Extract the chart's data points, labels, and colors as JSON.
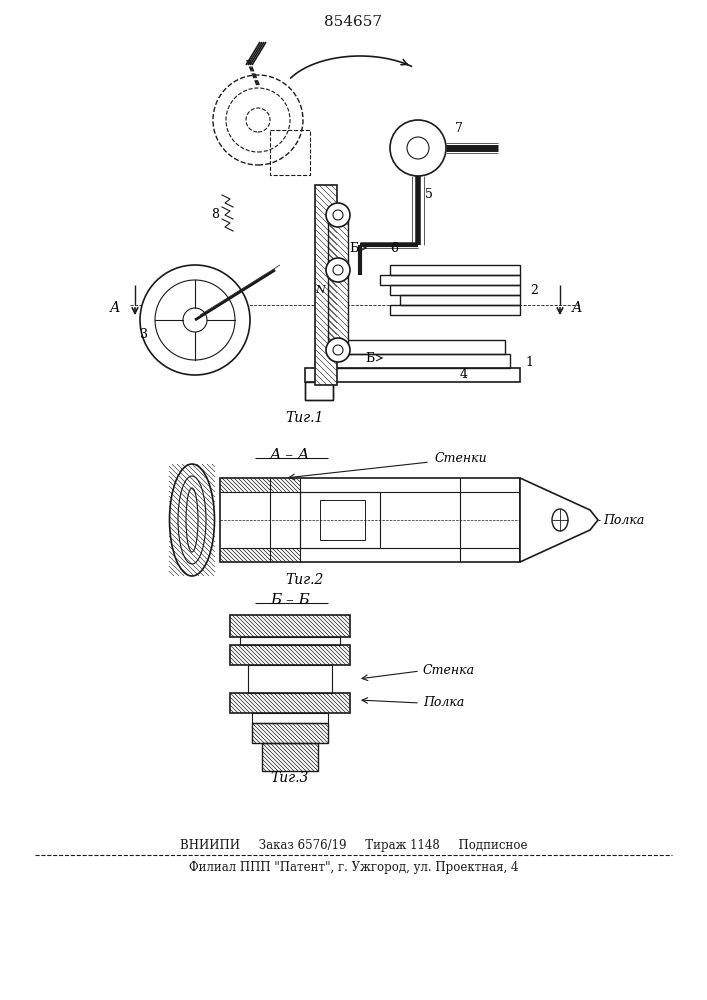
{
  "patent_number": "854657",
  "fig1_label": "Τиг.1",
  "fig2_label": "Τиг.2",
  "fig3_label": "Τиг.3",
  "section_aa": "А – А",
  "section_bb": "Б – Б",
  "label_stenki": "Стенки",
  "label_polka1": "Полка",
  "label_stenka": "Стенка",
  "label_polka2": "Полка",
  "footer_line1": "ВНИИПИ     Заказ 6576/19     Тираж 1148     Подписное",
  "footer_line2": "Филиал ППП \"Патент\", г. Ужгород, ул. Проектная, 4",
  "bg_color": "#ffffff",
  "lc": "#1a1a1a"
}
